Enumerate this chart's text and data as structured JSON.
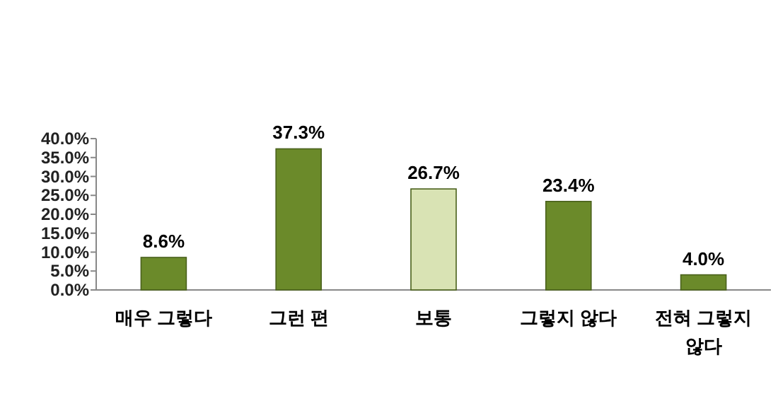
{
  "chart_data": {
    "type": "bar",
    "categories": [
      "매우 그렇다",
      "그런 편",
      "보통",
      "그렇지 않다",
      "전혀 그렇지 않다"
    ],
    "values": [
      8.6,
      37.3,
      26.7,
      23.4,
      4.0
    ],
    "value_labels": [
      "8.6%",
      "37.3%",
      "26.7%",
      "23.4%",
      "4.0%"
    ],
    "colors": [
      "#6b8a2a",
      "#6b8a2a",
      "#d9e3b4",
      "#6b8a2a",
      "#6b8a2a"
    ],
    "ylim": [
      0,
      40
    ],
    "yticks": [
      {
        "value": 0,
        "label": "0.0%"
      },
      {
        "value": 5,
        "label": "5.0%"
      },
      {
        "value": 10,
        "label": "10.0%"
      },
      {
        "value": 15,
        "label": "15.0%"
      },
      {
        "value": 20,
        "label": "20.0%"
      },
      {
        "value": 25,
        "label": "25.0%"
      },
      {
        "value": 30,
        "label": "30.0%"
      },
      {
        "value": 35,
        "label": "35.0%"
      },
      {
        "value": 40,
        "label": "40.0%"
      }
    ],
    "grid": false
  }
}
